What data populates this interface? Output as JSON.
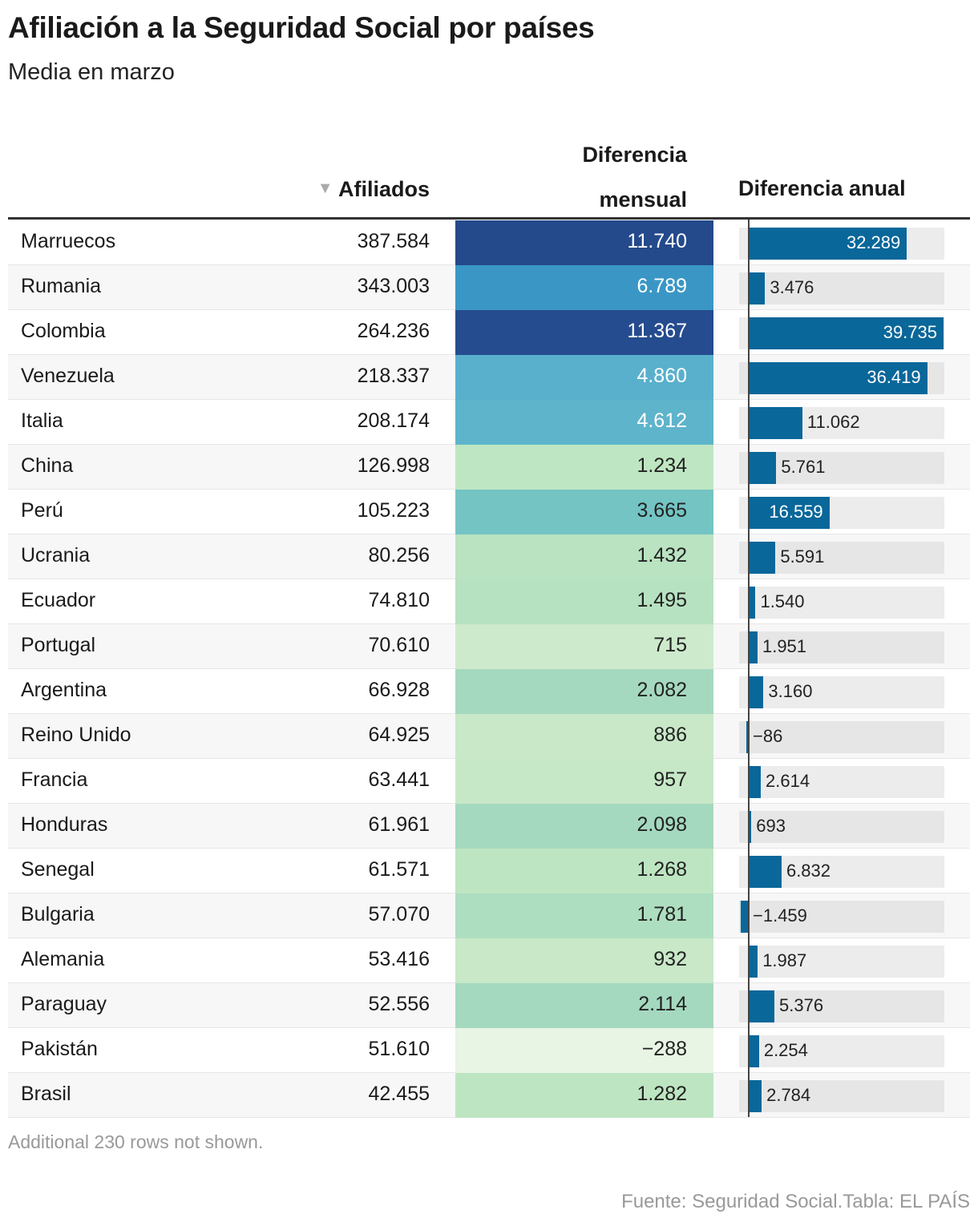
{
  "title": "Afiliación a la Seguridad Social por países",
  "subtitle": "Media en marzo",
  "headers": {
    "afiliados": "Afiliados",
    "mensual_1": "Diferencia",
    "mensual_2": "mensual",
    "anual": "Diferencia anual",
    "sort_icon": "triangle-down"
  },
  "colors": {
    "bar": "#09679a",
    "heat_high": "#244a8c",
    "heat_low": "#e8f4e4"
  },
  "rows": [
    {
      "country": "Marruecos",
      "afiliados": "387.584",
      "mensual": "11.740",
      "mensual_v": 11740,
      "anual": "32.289",
      "anual_v": 32289
    },
    {
      "country": "Rumania",
      "afiliados": "343.003",
      "mensual": "6.789",
      "mensual_v": 6789,
      "anual": "3.476",
      "anual_v": 3476
    },
    {
      "country": "Colombia",
      "afiliados": "264.236",
      "mensual": "11.367",
      "mensual_v": 11367,
      "anual": "39.735",
      "anual_v": 39735
    },
    {
      "country": "Venezuela",
      "afiliados": "218.337",
      "mensual": "4.860",
      "mensual_v": 4860,
      "anual": "36.419",
      "anual_v": 36419
    },
    {
      "country": "Italia",
      "afiliados": "208.174",
      "mensual": "4.612",
      "mensual_v": 4612,
      "anual": "11.062",
      "anual_v": 11062
    },
    {
      "country": "China",
      "afiliados": "126.998",
      "mensual": "1.234",
      "mensual_v": 1234,
      "anual": "5.761",
      "anual_v": 5761
    },
    {
      "country": "Perú",
      "afiliados": "105.223",
      "mensual": "3.665",
      "mensual_v": 3665,
      "anual": "16.559",
      "anual_v": 16559
    },
    {
      "country": "Ucrania",
      "afiliados": "80.256",
      "mensual": "1.432",
      "mensual_v": 1432,
      "anual": "5.591",
      "anual_v": 5591
    },
    {
      "country": "Ecuador",
      "afiliados": "74.810",
      "mensual": "1.495",
      "mensual_v": 1495,
      "anual": "1.540",
      "anual_v": 1540
    },
    {
      "country": "Portugal",
      "afiliados": "70.610",
      "mensual": "715",
      "mensual_v": 715,
      "anual": "1.951",
      "anual_v": 1951
    },
    {
      "country": "Argentina",
      "afiliados": "66.928",
      "mensual": "2.082",
      "mensual_v": 2082,
      "anual": "3.160",
      "anual_v": 3160
    },
    {
      "country": "Reino Unido",
      "afiliados": "64.925",
      "mensual": "886",
      "mensual_v": 886,
      "anual": "−86",
      "anual_v": -86
    },
    {
      "country": "Francia",
      "afiliados": "63.441",
      "mensual": "957",
      "mensual_v": 957,
      "anual": "2.614",
      "anual_v": 2614
    },
    {
      "country": "Honduras",
      "afiliados": "61.961",
      "mensual": "2.098",
      "mensual_v": 2098,
      "anual": "693",
      "anual_v": 693
    },
    {
      "country": "Senegal",
      "afiliados": "61.571",
      "mensual": "1.268",
      "mensual_v": 1268,
      "anual": "6.832",
      "anual_v": 6832
    },
    {
      "country": "Bulgaria",
      "afiliados": "57.070",
      "mensual": "1.781",
      "mensual_v": 1781,
      "anual": "−1.459",
      "anual_v": -1459
    },
    {
      "country": "Alemania",
      "afiliados": "53.416",
      "mensual": "932",
      "mensual_v": 932,
      "anual": "1.987",
      "anual_v": 1987
    },
    {
      "country": "Paraguay",
      "afiliados": "52.556",
      "mensual": "2.114",
      "mensual_v": 2114,
      "anual": "5.376",
      "anual_v": 5376
    },
    {
      "country": "Pakistán",
      "afiliados": "51.610",
      "mensual": "−288",
      "mensual_v": -288,
      "anual": "2.254",
      "anual_v": 2254
    },
    {
      "country": "Brasil",
      "afiliados": "42.455",
      "mensual": "1.282",
      "mensual_v": 1282,
      "anual": "2.784",
      "anual_v": 2784
    }
  ],
  "footer": {
    "note": "Additional 230 rows not shown.",
    "source": "Fuente: Seguridad Social.Tabla: EL PAÍS"
  }
}
